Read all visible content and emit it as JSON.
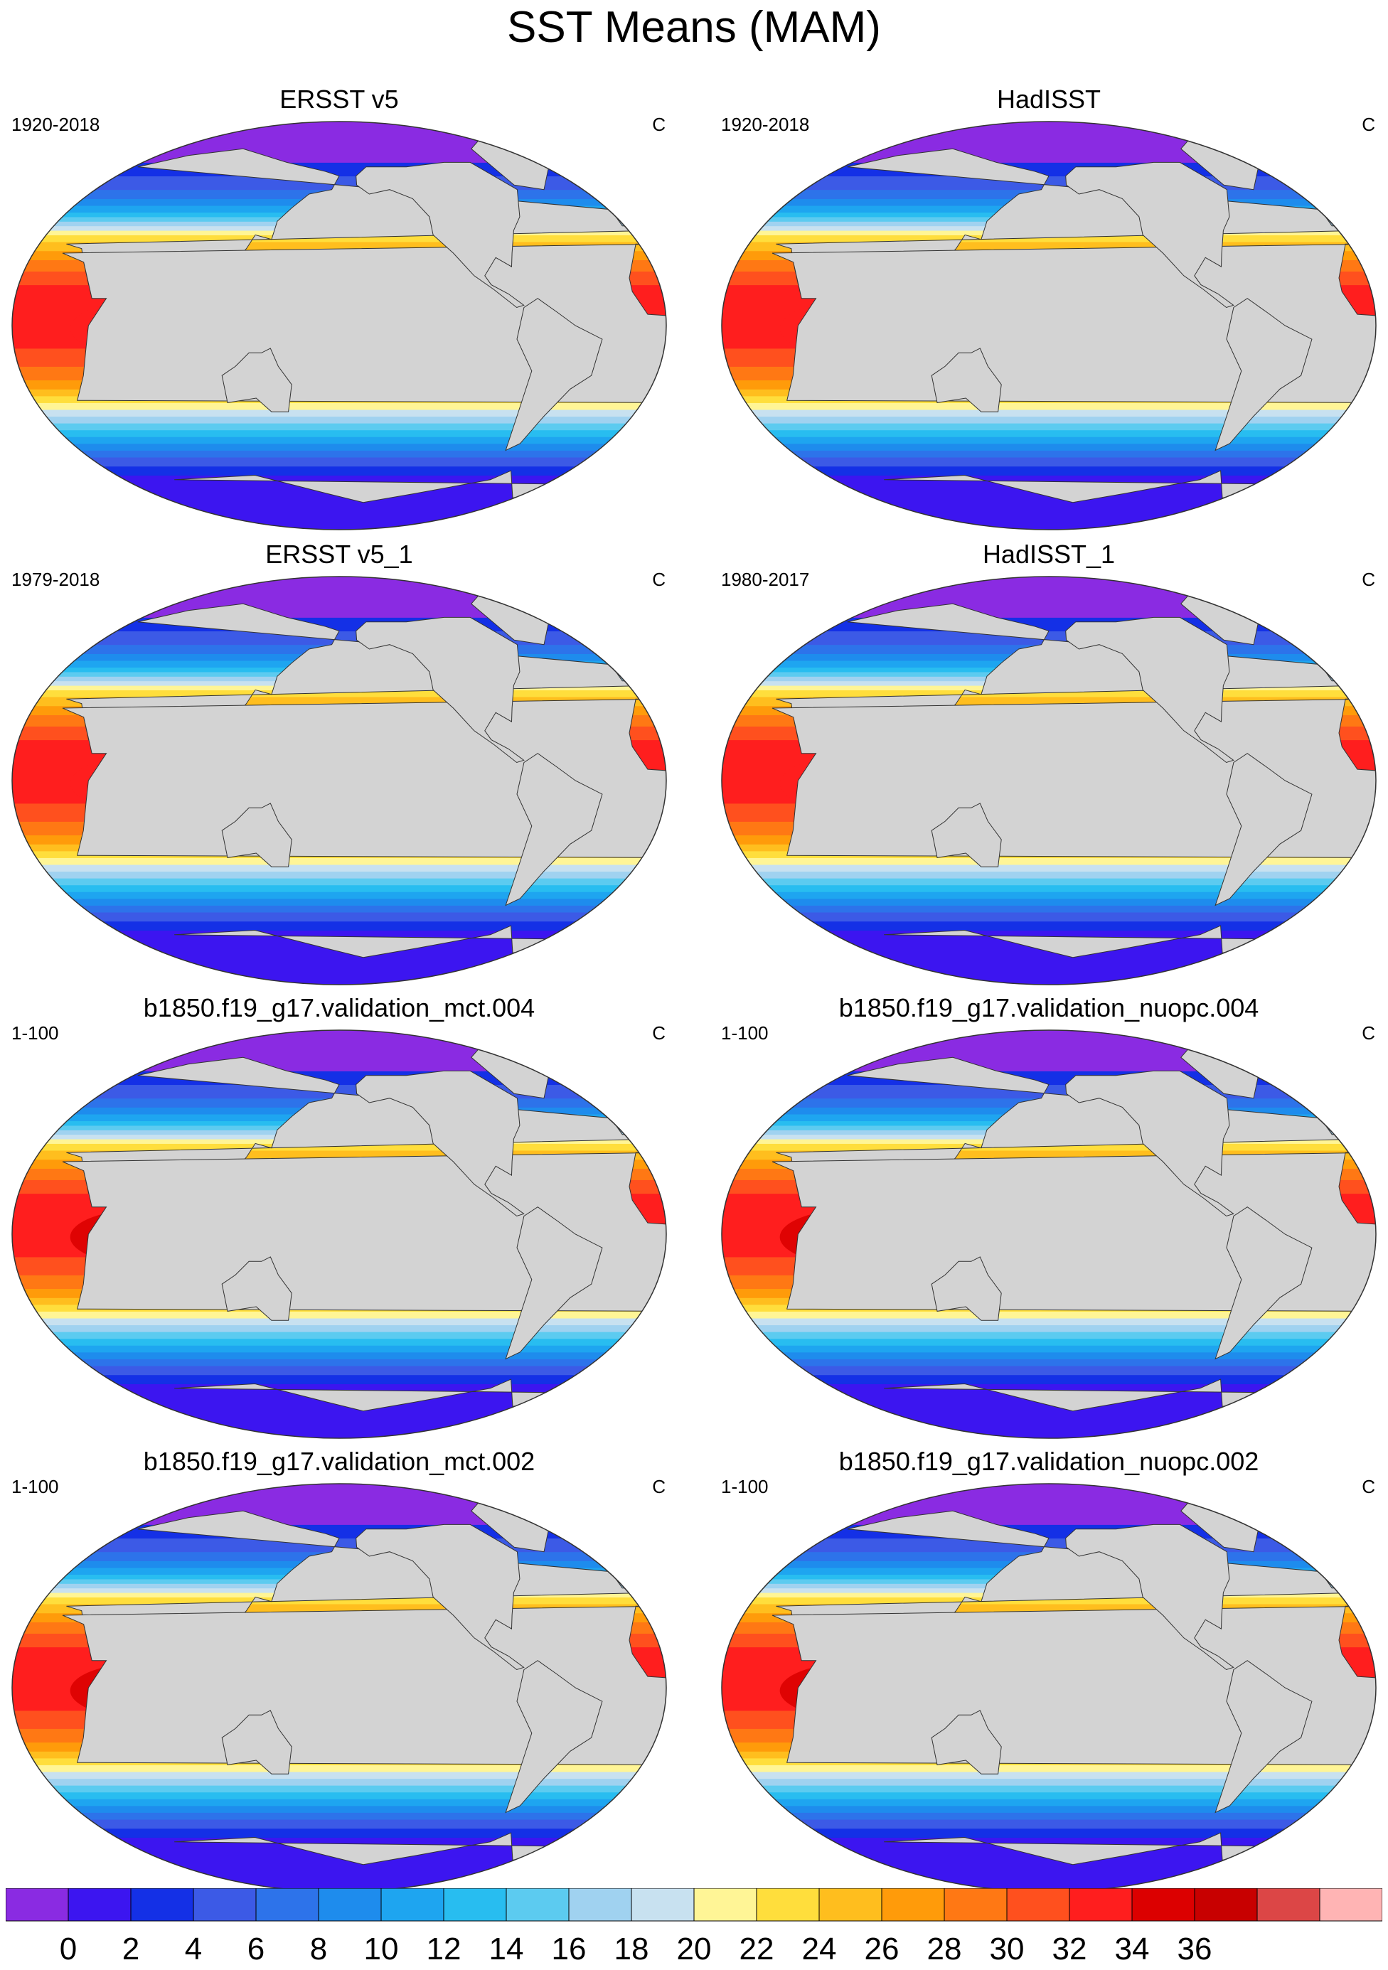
{
  "title": "SST Means (MAM)",
  "panels": [
    {
      "title": "ERSST v5",
      "range": "1920-2018",
      "unit": "C",
      "ref": true
    },
    {
      "title": "HadISST",
      "range": "1920-2018",
      "unit": "C",
      "ref": true
    },
    {
      "title": "ERSST v5_1",
      "range": "1979-2018",
      "unit": "C",
      "ref": true
    },
    {
      "title": "HadISST_1",
      "range": "1980-2017",
      "unit": "C",
      "ref": true
    },
    {
      "title": "b1850.f19_g17.validation_mct.004",
      "range": "1-100",
      "unit": "C",
      "ref": false
    },
    {
      "title": "b1850.f19_g17.validation_nuopc.004",
      "range": "1-100",
      "unit": "C",
      "ref": false
    },
    {
      "title": "b1850.f19_g17.validation_mct.002",
      "range": "1-100",
      "unit": "C",
      "ref": false
    },
    {
      "title": "b1850.f19_g17.validation_nuopc.002",
      "range": "1-100",
      "unit": "C",
      "ref": false
    }
  ],
  "chart_data": {
    "type": "heatmap",
    "projection": "robinson",
    "variable": "sea surface temperature",
    "season": "MAM",
    "colorbar": {
      "ticks": [
        0,
        2,
        4,
        6,
        8,
        10,
        12,
        14,
        16,
        18,
        20,
        22,
        24,
        26,
        28,
        30,
        32,
        34,
        36
      ],
      "colors": [
        "#8a2be2",
        "#3c15f0",
        "#1430e6",
        "#3c5ae6",
        "#2d73ea",
        "#1e8ced",
        "#1ea5f0",
        "#28bdf0",
        "#5ccbf0",
        "#a0d2f0",
        "#c8e1f0",
        "#fff596",
        "#ffde3c",
        "#ffbe1e",
        "#ff9b0a",
        "#ff7814",
        "#ff501e",
        "#ff1e1e",
        "#dc0000",
        "#c80000",
        "#dc4646",
        "#ffb4b4"
      ]
    },
    "land_color": "#d3d3d3",
    "ice_color": "#ffffff"
  }
}
